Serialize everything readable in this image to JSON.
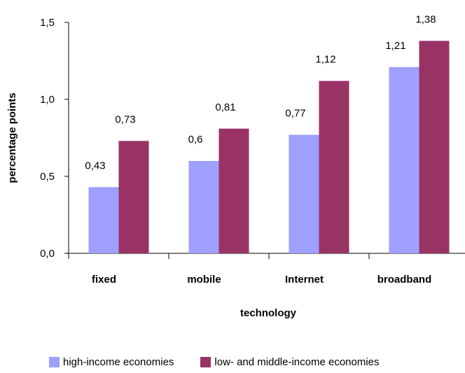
{
  "chart_data": {
    "type": "bar",
    "categories": [
      "fixed",
      "mobile",
      "Internet",
      "broadband"
    ],
    "series": [
      {
        "name": "high-income economies",
        "values": [
          0.43,
          0.6,
          0.77,
          1.21
        ],
        "labels": [
          "0,43",
          "0,6",
          "0,77",
          "1,21"
        ],
        "color": "#9f9ffd"
      },
      {
        "name": "low- and middle-income economies",
        "values": [
          0.73,
          0.81,
          1.12,
          1.38
        ],
        "labels": [
          "0,73",
          "0,81",
          "1,12",
          "1,38"
        ],
        "color": "#993366"
      }
    ],
    "xlabel": "technology",
    "ylabel": "percentage points",
    "ylim": [
      0,
      1.5
    ],
    "yticks": [
      0,
      0.5,
      1.0,
      1.5
    ],
    "ytick_labels": [
      "0,0",
      "0,5",
      "1,0",
      "1,5"
    ],
    "grid": false,
    "legend_position": "bottom"
  }
}
